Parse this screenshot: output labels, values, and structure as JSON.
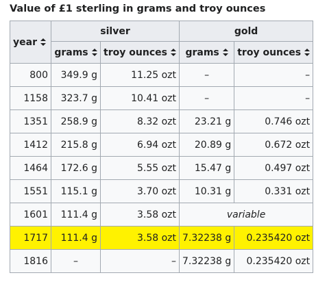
{
  "caption": "Value of £1 sterling in grams and troy ounces",
  "headers": {
    "year": "year",
    "silver": "silver",
    "gold": "gold",
    "grams": "grams",
    "troy_ounces": "troy ounces"
  },
  "icons": {
    "sort": "sort-arrows-icon"
  },
  "highlight_color": "#fff200",
  "rows": [
    {
      "year": "800",
      "sg": "349.9 g",
      "so": "11.25 ozt",
      "gg": "–",
      "go": "–"
    },
    {
      "year": "1158",
      "sg": "323.7 g",
      "so": "10.41 ozt",
      "gg": "–",
      "go": "–"
    },
    {
      "year": "1351",
      "sg": "258.9 g",
      "so": "8.32 ozt",
      "gg": "23.21 g",
      "go": "0.746 ozt"
    },
    {
      "year": "1412",
      "sg": "215.8 g",
      "so": "6.94 ozt",
      "gg": "20.89 g",
      "go": "0.672 ozt"
    },
    {
      "year": "1464",
      "sg": "172.6 g",
      "so": "5.55 ozt",
      "gg": "15.47 g",
      "go": "0.497 ozt"
    },
    {
      "year": "1551",
      "sg": "115.1 g",
      "so": "3.70 ozt",
      "gg": "10.31 g",
      "go": "0.331 ozt"
    },
    {
      "year": "1601",
      "sg": "111.4 g",
      "so": "3.58 ozt",
      "gold_note": "variable"
    },
    {
      "year": "1717",
      "sg": "111.4 g",
      "so": "3.58 ozt",
      "gg": "7.32238 g",
      "go": "0.235420 ozt",
      "highlighted": true
    },
    {
      "year": "1816",
      "sg": "–",
      "so": "–",
      "gg": "7.32238 g",
      "go": "0.235420 ozt"
    }
  ]
}
